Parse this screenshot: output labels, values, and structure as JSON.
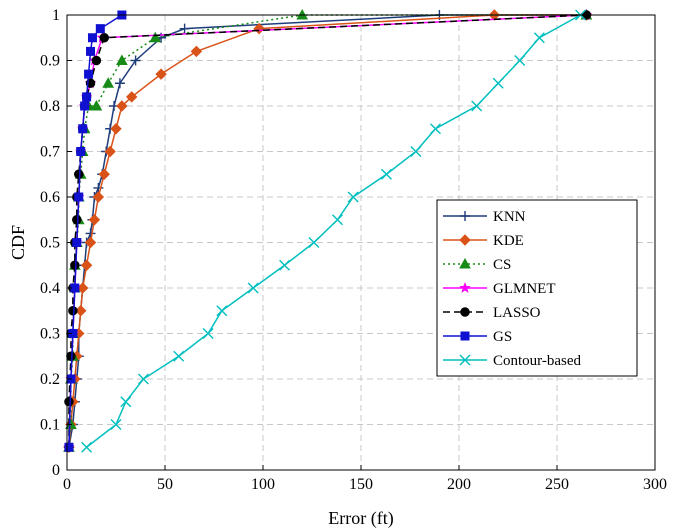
{
  "chart_data": {
    "type": "line",
    "xlabel": "Error (ft)",
    "ylabel": "CDF",
    "xlim": [
      0,
      300
    ],
    "ylim": [
      0,
      1
    ],
    "x_ticks": [
      "0",
      "50",
      "100",
      "150",
      "200",
      "250",
      "300"
    ],
    "y_ticks": [
      "0",
      "0.1",
      "0.2",
      "0.3",
      "0.4",
      "0.5",
      "0.6",
      "0.7",
      "0.8",
      "0.9",
      "1"
    ],
    "grid": true,
    "legend_position": "center-right",
    "series": [
      {
        "name": "KNN",
        "color": "#1f3d7a",
        "line": "solid",
        "marker": "plus",
        "x": [
          1,
          3,
          4,
          5,
          6,
          6,
          7,
          8,
          9,
          10,
          12,
          13,
          14,
          16,
          18,
          20,
          22,
          24,
          27,
          35,
          48,
          60,
          190,
          265
        ],
        "y": [
          0.05,
          0.1,
          0.15,
          0.2,
          0.25,
          0.3,
          0.35,
          0.4,
          0.45,
          0.5,
          0.52,
          0.55,
          0.6,
          0.62,
          0.65,
          0.7,
          0.75,
          0.8,
          0.85,
          0.9,
          0.95,
          0.97,
          1.0,
          1.0
        ]
      },
      {
        "name": "KDE",
        "color": "#d95319",
        "line": "solid",
        "marker": "diamond",
        "x": [
          1,
          2,
          3,
          4,
          5,
          6,
          7,
          8,
          10,
          12,
          14,
          16,
          19,
          22,
          25,
          28,
          33,
          48,
          66,
          98,
          218,
          265
        ],
        "y": [
          0.05,
          0.1,
          0.15,
          0.2,
          0.25,
          0.3,
          0.35,
          0.4,
          0.45,
          0.5,
          0.55,
          0.6,
          0.65,
          0.7,
          0.75,
          0.8,
          0.82,
          0.87,
          0.92,
          0.97,
          1.0,
          1.0
        ]
      },
      {
        "name": "CS",
        "color": "#178a17",
        "line": "dotted",
        "marker": "triangle",
        "x": [
          1,
          2,
          2,
          3,
          3,
          4,
          4,
          5,
          6,
          6,
          7,
          8,
          9,
          11,
          15,
          21,
          28,
          45,
          120,
          265
        ],
        "y": [
          0.05,
          0.1,
          0.2,
          0.25,
          0.3,
          0.4,
          0.45,
          0.5,
          0.55,
          0.6,
          0.65,
          0.7,
          0.75,
          0.8,
          0.8,
          0.85,
          0.9,
          0.95,
          1.0,
          1.0
        ]
      },
      {
        "name": "GLMNET",
        "color": "#ff00ff",
        "line": "solid",
        "marker": "star",
        "x": [
          1,
          2,
          3,
          4,
          5,
          6,
          7,
          8,
          9,
          10,
          12,
          14,
          18,
          265
        ],
        "y": [
          0.05,
          0.2,
          0.3,
          0.4,
          0.5,
          0.6,
          0.7,
          0.75,
          0.8,
          0.82,
          0.85,
          0.9,
          0.95,
          1.0
        ]
      },
      {
        "name": "LASSO",
        "color": "#000000",
        "line": "dashed",
        "marker": "circle",
        "x": [
          1,
          1,
          2,
          2,
          3,
          3,
          4,
          4,
          5,
          5,
          6,
          7,
          8,
          9,
          10,
          12,
          15,
          19,
          265
        ],
        "y": [
          0.05,
          0.15,
          0.25,
          0.3,
          0.35,
          0.4,
          0.45,
          0.5,
          0.55,
          0.6,
          0.65,
          0.7,
          0.75,
          0.8,
          0.82,
          0.85,
          0.9,
          0.95,
          1.0
        ]
      },
      {
        "name": "GS",
        "color": "#1010d0",
        "line": "solid",
        "marker": "square",
        "x": [
          1,
          2,
          3,
          4,
          5,
          6,
          7,
          8,
          9,
          10,
          11,
          12,
          13,
          17,
          28
        ],
        "y": [
          0.05,
          0.2,
          0.3,
          0.4,
          0.5,
          0.6,
          0.7,
          0.75,
          0.8,
          0.82,
          0.87,
          0.92,
          0.95,
          0.97,
          1.0
        ]
      },
      {
        "name": "Contour-based",
        "color": "#00bfbf",
        "line": "solid",
        "marker": "x",
        "x": [
          10,
          25,
          30,
          39,
          57,
          72,
          79,
          95,
          111,
          126,
          138,
          146,
          163,
          178,
          188,
          209,
          220,
          231,
          241,
          262
        ],
        "y": [
          0.05,
          0.1,
          0.15,
          0.2,
          0.25,
          0.3,
          0.35,
          0.4,
          0.45,
          0.5,
          0.55,
          0.6,
          0.65,
          0.7,
          0.75,
          0.8,
          0.85,
          0.9,
          0.95,
          1.0
        ]
      }
    ]
  }
}
